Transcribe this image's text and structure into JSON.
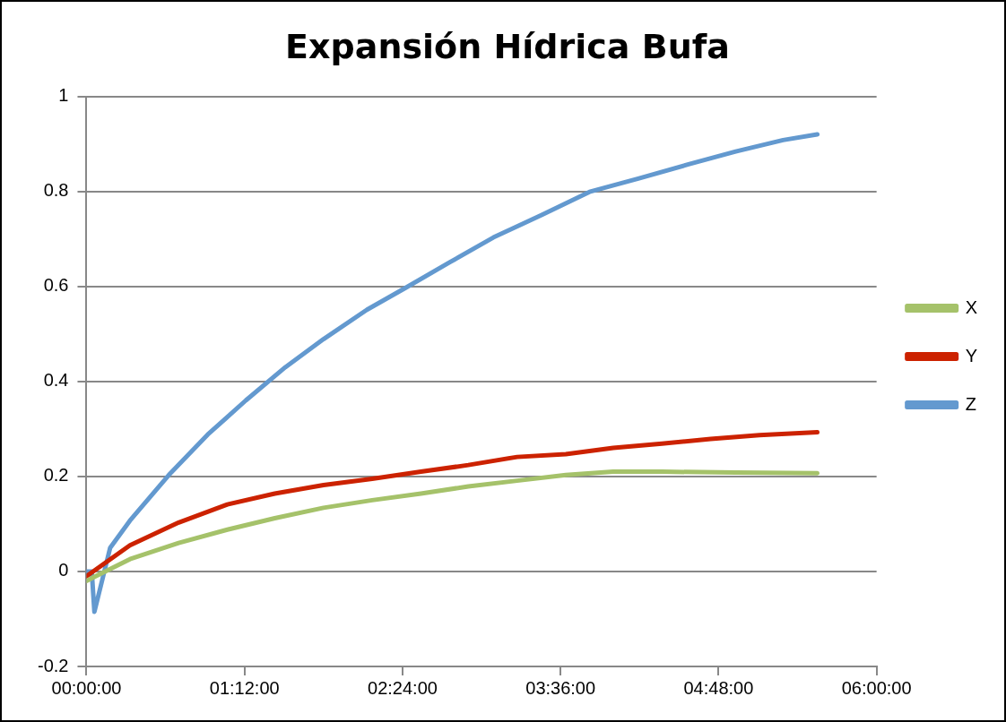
{
  "chart_data": {
    "type": "line",
    "title": "Expansión Hídrica Bufa",
    "xlim": [
      0,
      6
    ],
    "xticks": [
      {
        "value": 0,
        "label": "00:00:00"
      },
      {
        "value": 1.2,
        "label": "01:12:00"
      },
      {
        "value": 2.4,
        "label": "02:24:00"
      },
      {
        "value": 3.6,
        "label": "03:36:00"
      },
      {
        "value": 4.8,
        "label": "04:48:00"
      },
      {
        "value": 6,
        "label": "06:00:00"
      }
    ],
    "ylim": [
      -0.2,
      1
    ],
    "yticks": [
      -0.2,
      0,
      0.2,
      0.4,
      0.6,
      0.8,
      1
    ],
    "grid": "y",
    "legend": "right",
    "marker": "none",
    "line_style": "solid",
    "series": [
      {
        "name": "X",
        "color": "#a5c26a",
        "x": [
          0,
          0.07,
          0.33,
          0.7,
          1.07,
          1.43,
          1.8,
          2.17,
          2.54,
          2.9,
          3.27,
          3.64,
          4.0,
          4.37,
          4.93,
          5.55
        ],
        "values": [
          -0.02,
          -0.01,
          0.026,
          0.06,
          0.088,
          0.112,
          0.134,
          0.15,
          0.164,
          0.179,
          0.191,
          0.203,
          0.21,
          0.21,
          0.208,
          0.207
        ]
      },
      {
        "name": "Y",
        "color": "#cc2200",
        "x": [
          0,
          0.05,
          0.33,
          0.7,
          1.07,
          1.43,
          1.8,
          2.17,
          2.54,
          2.9,
          3.27,
          3.64,
          4.0,
          4.37,
          4.74,
          5.11,
          5.55
        ],
        "values": [
          -0.01,
          0,
          0.055,
          0.103,
          0.141,
          0.164,
          0.182,
          0.195,
          0.21,
          0.224,
          0.241,
          0.247,
          0.26,
          0.269,
          0.279,
          0.287,
          0.293
        ]
      },
      {
        "name": "Z",
        "color": "#6399cf",
        "x": [
          0,
          0.04,
          0.06,
          0.18,
          0.33,
          0.625,
          0.92,
          1.21,
          1.51,
          1.8,
          2.13,
          2.43,
          2.76,
          3.09,
          3.46,
          3.82,
          4.19,
          4.56,
          4.93,
          5.29,
          5.55
        ],
        "values": [
          0,
          0,
          -0.085,
          0.05,
          0.107,
          0.203,
          0.288,
          0.36,
          0.43,
          0.489,
          0.551,
          0.598,
          0.651,
          0.703,
          0.751,
          0.799,
          0.827,
          0.856,
          0.884,
          0.908,
          0.92
        ]
      }
    ]
  }
}
